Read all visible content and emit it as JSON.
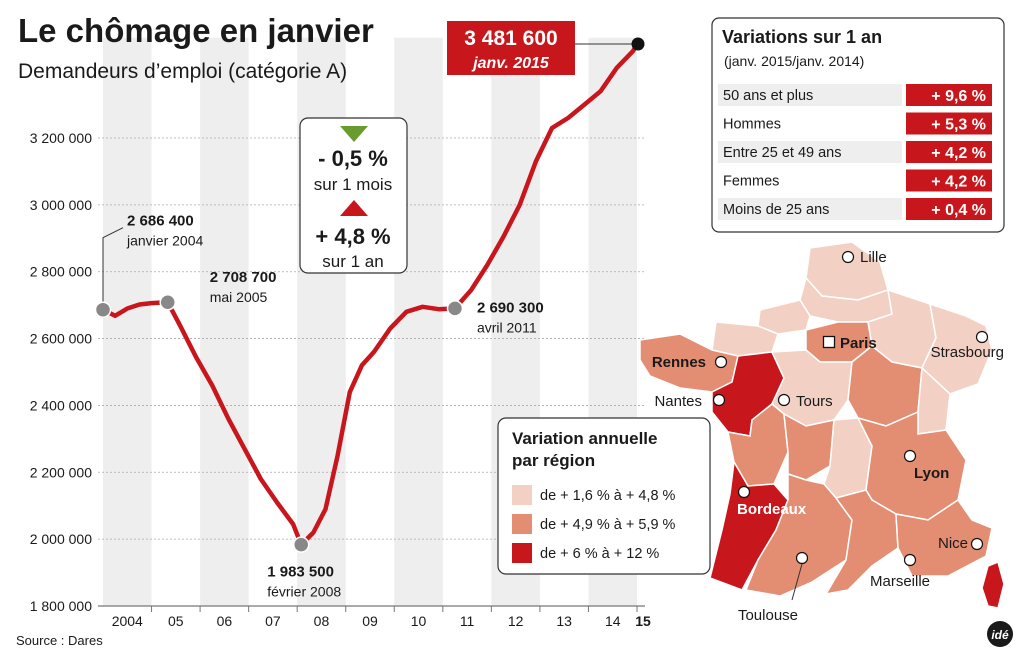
{
  "header": {
    "title": "Le chômage en janvier",
    "subtitle": "Demandeurs d’emploi (catégorie A)"
  },
  "source": "Source : Dares",
  "logo_text": "idé",
  "colors": {
    "line": "#c8161d",
    "accent_red": "#c8161d",
    "green": "#6a9b2e",
    "region_light": "#f3d0c4",
    "region_mid": "#e38e72",
    "region_dark": "#c8161d",
    "band": "#eeeeee"
  },
  "chart_data": {
    "type": "line",
    "title": "Le chômage en janvier",
    "subtitle": "Demandeurs d’emploi (catégorie A)",
    "ylim": [
      1800000,
      3500000
    ],
    "y_ticks": [
      {
        "value": 1800000,
        "label": "1 800 000"
      },
      {
        "value": 2000000,
        "label": "2 000 000"
      },
      {
        "value": 2200000,
        "label": "2 200 000"
      },
      {
        "value": 2400000,
        "label": "2 400 000"
      },
      {
        "value": 2600000,
        "label": "2 600 000"
      },
      {
        "value": 2800000,
        "label": "2 800 000"
      },
      {
        "value": 3000000,
        "label": "3 000 000"
      },
      {
        "value": 3200000,
        "label": "3 200 000"
      }
    ],
    "x_ticks": [
      {
        "year": 2004,
        "label": "2004"
      },
      {
        "year": 2005,
        "label": "05"
      },
      {
        "year": 2006,
        "label": "06"
      },
      {
        "year": 2007,
        "label": "07"
      },
      {
        "year": 2008,
        "label": "08"
      },
      {
        "year": 2009,
        "label": "09"
      },
      {
        "year": 2010,
        "label": "10"
      },
      {
        "year": 2011,
        "label": "11"
      },
      {
        "year": 2012,
        "label": "12"
      },
      {
        "year": 2013,
        "label": "13"
      },
      {
        "year": 2014,
        "label": "14"
      },
      {
        "year": 2015,
        "label": "15"
      }
    ],
    "series": [
      {
        "points": [
          [
            "2004-01",
            2686400
          ],
          [
            "2004-04",
            2668000
          ],
          [
            "2004-07",
            2690000
          ],
          [
            "2004-10",
            2702000
          ],
          [
            "2005-01",
            2706000
          ],
          [
            "2005-05",
            2708700
          ],
          [
            "2005-08",
            2640000
          ],
          [
            "2005-12",
            2545000
          ],
          [
            "2006-04",
            2460000
          ],
          [
            "2006-08",
            2360000
          ],
          [
            "2006-12",
            2270000
          ],
          [
            "2007-04",
            2180000
          ],
          [
            "2007-08",
            2110000
          ],
          [
            "2007-12",
            2045000
          ],
          [
            "2008-02",
            1983500
          ],
          [
            "2008-05",
            2020000
          ],
          [
            "2008-08",
            2090000
          ],
          [
            "2008-11",
            2250000
          ],
          [
            "2009-02",
            2440000
          ],
          [
            "2009-05",
            2520000
          ],
          [
            "2009-08",
            2560000
          ],
          [
            "2009-12",
            2630000
          ],
          [
            "2010-04",
            2680000
          ],
          [
            "2010-08",
            2695000
          ],
          [
            "2010-12",
            2688000
          ],
          [
            "2011-04",
            2690300
          ],
          [
            "2011-08",
            2745000
          ],
          [
            "2011-12",
            2820000
          ],
          [
            "2012-04",
            2905000
          ],
          [
            "2012-08",
            3000000
          ],
          [
            "2012-12",
            3130000
          ],
          [
            "2013-04",
            3230000
          ],
          [
            "2013-08",
            3260000
          ],
          [
            "2013-12",
            3300000
          ],
          [
            "2014-04",
            3340000
          ],
          [
            "2014-08",
            3410000
          ],
          [
            "2014-12",
            3460000
          ],
          [
            "2015-01",
            3481600
          ]
        ]
      }
    ],
    "annotations": [
      {
        "date": "2004-01",
        "value": 2686400,
        "value_label": "2 686 400",
        "date_label": "janvier 2004"
      },
      {
        "date": "2005-05",
        "value": 2708700,
        "value_label": "2 708 700",
        "date_label": "mai 2005"
      },
      {
        "date": "2008-02",
        "value": 1983500,
        "value_label": "1 983 500",
        "date_label": "février 2008"
      },
      {
        "date": "2011-04",
        "value": 2690300,
        "value_label": "2 690 300",
        "date_label": "avril 2011"
      }
    ],
    "latest": {
      "date": "2015-01",
      "value": 3481600,
      "value_label": "3 481 600",
      "date_label": "janv. 2015"
    },
    "change_box": {
      "month_change": "- 0,5 %",
      "month_label": "sur 1 mois",
      "year_change": "+ 4,8 %",
      "year_label": "sur 1 an"
    },
    "grid": true
  },
  "variations": {
    "title": "Variations sur 1 an",
    "subtitle": "(janv. 2015/janv. 2014)",
    "rows": [
      {
        "label": "50 ans et plus",
        "value": "+ 9,6 %"
      },
      {
        "label": "Hommes",
        "value": "+ 5,3 %"
      },
      {
        "label": "Entre 25 et 49 ans",
        "value": "+ 4,2 %"
      },
      {
        "label": "Femmes",
        "value": "+ 4,2 %"
      },
      {
        "label": "Moins de 25 ans",
        "value": "+ 0,4 %"
      }
    ]
  },
  "map": {
    "legend_title": "Variation annuelle par région",
    "legend_title_line1": "Variation annuelle",
    "legend_title_line2": "par région",
    "legend": [
      {
        "label": "de + 1,6 % à + 4,8 %",
        "color": "#f3d0c4"
      },
      {
        "label": "de + 4,9 % à + 5,9 %",
        "color": "#e38e72"
      },
      {
        "label": "de + 6 % à + 12 %",
        "color": "#c8161d"
      }
    ],
    "cities": [
      "Lille",
      "Paris",
      "Strasbourg",
      "Rennes",
      "Nantes",
      "Tours",
      "Lyon",
      "Bordeaux",
      "Nice",
      "Marseille",
      "Toulouse"
    ]
  }
}
